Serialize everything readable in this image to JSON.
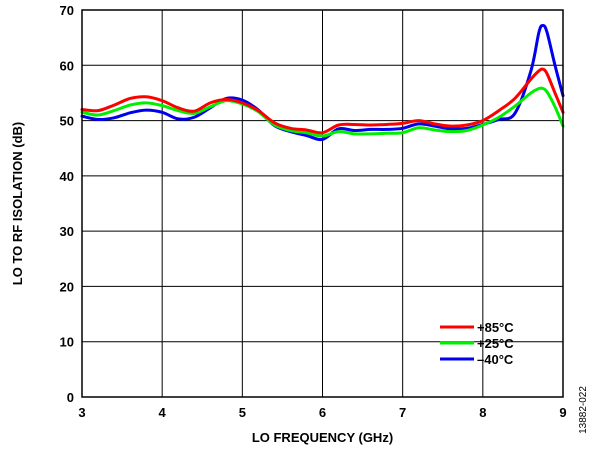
{
  "chart_data": {
    "type": "line",
    "xlabel": "LO FREQUENCY (GHz)",
    "ylabel": "LO TO RF ISOLATION (dB)",
    "xlim": [
      3,
      9
    ],
    "ylim": [
      0,
      70
    ],
    "x_ticks": [
      "3",
      "4",
      "5",
      "6",
      "7",
      "8",
      "9"
    ],
    "y_ticks": [
      "0",
      "10",
      "20",
      "30",
      "40",
      "50",
      "60",
      "70"
    ],
    "grid": true,
    "legend_position": "bottom-right",
    "figure_id": "13882-022",
    "series": [
      {
        "name": "+85°C",
        "color": "#ff0000",
        "x": [
          3.0,
          3.2,
          3.4,
          3.6,
          3.8,
          4.0,
          4.2,
          4.4,
          4.6,
          4.8,
          5.0,
          5.2,
          5.4,
          5.6,
          5.8,
          6.0,
          6.2,
          6.4,
          6.6,
          6.8,
          7.0,
          7.2,
          7.4,
          7.6,
          7.8,
          8.0,
          8.2,
          8.4,
          8.6,
          8.7,
          8.75,
          8.8,
          8.9,
          9.0
        ],
        "y": [
          52.0,
          51.8,
          52.8,
          54.0,
          54.3,
          53.6,
          52.3,
          51.7,
          53.2,
          53.8,
          53.2,
          51.8,
          49.6,
          48.6,
          48.3,
          47.8,
          49.2,
          49.3,
          49.2,
          49.3,
          49.5,
          50.0,
          49.4,
          49.0,
          49.2,
          50.0,
          51.8,
          54.0,
          57.5,
          59.0,
          59.3,
          58.5,
          55.0,
          51.5
        ]
      },
      {
        "name": "+25°C",
        "color": "#00ee00",
        "x": [
          3.0,
          3.2,
          3.4,
          3.6,
          3.8,
          4.0,
          4.2,
          4.4,
          4.6,
          4.8,
          5.0,
          5.2,
          5.4,
          5.6,
          5.8,
          6.0,
          6.2,
          6.4,
          6.6,
          6.8,
          7.0,
          7.2,
          7.4,
          7.6,
          7.8,
          8.0,
          8.2,
          8.4,
          8.6,
          8.7,
          8.75,
          8.8,
          8.9,
          9.0
        ],
        "y": [
          51.5,
          51.0,
          51.8,
          52.8,
          53.2,
          52.7,
          51.8,
          51.3,
          52.5,
          53.6,
          53.0,
          51.6,
          49.2,
          48.2,
          47.8,
          47.2,
          48.0,
          47.6,
          47.6,
          47.7,
          47.8,
          48.7,
          48.3,
          48.0,
          48.2,
          49.2,
          50.6,
          52.6,
          55.0,
          55.8,
          55.8,
          55.2,
          52.5,
          49.0
        ]
      },
      {
        "name": "–40°C",
        "color": "#0000ee",
        "x": [
          3.0,
          3.2,
          3.4,
          3.6,
          3.8,
          4.0,
          4.2,
          4.4,
          4.6,
          4.8,
          5.0,
          5.2,
          5.4,
          5.6,
          5.8,
          6.0,
          6.2,
          6.4,
          6.6,
          6.8,
          7.0,
          7.2,
          7.4,
          7.6,
          7.8,
          8.0,
          8.2,
          8.4,
          8.6,
          8.7,
          8.75,
          8.8,
          8.9,
          9.0
        ],
        "y": [
          50.8,
          50.2,
          50.5,
          51.4,
          51.9,
          51.5,
          50.3,
          50.6,
          52.3,
          54.0,
          53.7,
          51.9,
          49.1,
          48.0,
          47.3,
          46.6,
          48.5,
          48.2,
          48.4,
          48.4,
          48.6,
          49.4,
          49.0,
          48.5,
          48.6,
          49.3,
          50.2,
          51.3,
          59.0,
          66.0,
          67.2,
          66.0,
          60.0,
          54.5
        ]
      }
    ]
  }
}
